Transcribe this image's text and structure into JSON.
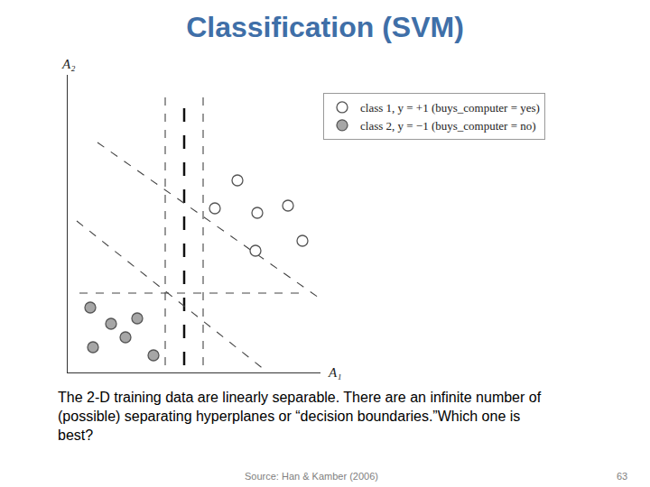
{
  "chart_data": {
    "type": "scatter",
    "title": "Classification (SVM)",
    "x_label": "A₁",
    "y_label": "A₂",
    "xlim": [
      0,
      280
    ],
    "ylim": [
      0,
      330
    ],
    "tick_labels": false,
    "grid": false,
    "legend": "upper right",
    "series": [
      {
        "name": "class 1, y = +1 (buys_computer = yes)",
        "color": "#ffffff",
        "marker": "circle",
        "x": [
          188,
          163,
          210,
          244,
          208,
          260
        ],
        "values": [
          213,
          182,
          177,
          185,
          135,
          146
        ]
      },
      {
        "name": "class 2, y = −1 (buys_computer = no)",
        "color": "#a6a6a6",
        "marker": "circle",
        "x": [
          25,
          48,
          77,
          64,
          28,
          95
        ],
        "values": [
          72,
          54,
          60,
          39,
          28,
          19
        ]
      }
    ],
    "hyperplanes": [
      {
        "x": [
          108,
          108
        ],
        "values": [
          8,
          308
        ],
        "line_style": "dash"
      },
      {
        "x": [
          129,
          129
        ],
        "values": [
          8,
          298
        ],
        "line_style": "longdash"
      },
      {
        "x": [
          150,
          150
        ],
        "values": [
          8,
          308
        ],
        "line_style": "dash"
      },
      {
        "x": [
          33,
          278
        ],
        "values": [
          255,
          83
        ],
        "line_style": "dash"
      },
      {
        "x": [
          10,
          218
        ],
        "values": [
          168,
          3
        ],
        "line_style": "dash"
      },
      {
        "x": [
          13,
          257
        ],
        "values": [
          88,
          88
        ],
        "line_style": "dash"
      }
    ],
    "caption": [
      "The 2-D training data are linearly separable. There are an infinite number of",
      "(possible) separating hyperplanes or “decision boundaries.”Which one is",
      "best?"
    ],
    "source": "Source: Han & Kamber (2006)",
    "page_number": 63
  }
}
